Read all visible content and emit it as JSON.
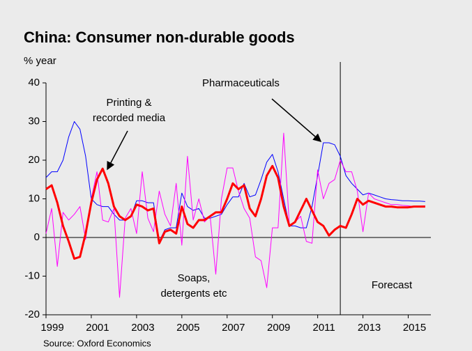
{
  "chart_data": {
    "type": "line",
    "title": "China: Consumer non-durable goods",
    "ylabel": "% year",
    "source": "Source: Oxford Economics",
    "annotations": [
      [
        "Pharmaceuticals"
      ],
      [
        "Printing &",
        "recorded media"
      ],
      [
        "Soaps,",
        "detergents etc"
      ],
      [
        "Forecast"
      ]
    ],
    "forecast_start": 2012,
    "x": [
      1999,
      1999.25,
      1999.5,
      1999.75,
      2000,
      2000.25,
      2000.5,
      2000.75,
      2001,
      2001.25,
      2001.5,
      2001.75,
      2002,
      2002.25,
      2002.5,
      2002.75,
      2003,
      2003.25,
      2003.5,
      2003.75,
      2004,
      2004.25,
      2004.5,
      2004.75,
      2005,
      2005.25,
      2005.5,
      2005.75,
      2006,
      2006.25,
      2006.5,
      2006.75,
      2007,
      2007.25,
      2007.5,
      2007.75,
      2008,
      2008.25,
      2008.5,
      2008.75,
      2009,
      2009.25,
      2009.5,
      2009.75,
      2010,
      2010.25,
      2010.5,
      2010.75,
      2011,
      2011.25,
      2011.5,
      2011.75,
      2012,
      2012.25,
      2012.5,
      2012.75,
      2013,
      2013.25,
      2013.5,
      2013.75,
      2014,
      2014.25,
      2014.5,
      2014.75,
      2015,
      2015.25,
      2015.5,
      2015.75
    ],
    "series": [
      {
        "color": "#0000ff",
        "width": 1,
        "values": [
          15.5,
          17,
          17,
          20,
          26,
          30,
          28,
          21,
          10,
          8.5,
          8,
          8,
          6,
          4.5,
          4.5,
          5.5,
          9.5,
          9.5,
          9,
          9,
          -1,
          2,
          2.5,
          2.5,
          11.5,
          8,
          7,
          7.5,
          5,
          5,
          5.5,
          6,
          8.5,
          10.5,
          10.5,
          14,
          10.5,
          11,
          15,
          19.5,
          21.5,
          17,
          10,
          3,
          3,
          2.5,
          2.5,
          8,
          16,
          24.5,
          24.5,
          24,
          21,
          16,
          14,
          12.5,
          11,
          11.5,
          11,
          10.5,
          10,
          9.8,
          9.7,
          9.5,
          9.5,
          9.4,
          9.4,
          9.3
        ]
      },
      {
        "color": "#ff00ff",
        "width": 1,
        "values": [
          1,
          7.5,
          -7.5,
          6.5,
          4.5,
          6,
          8,
          -0.5,
          10,
          17,
          4.5,
          4,
          7.5,
          -15.5,
          5,
          7.5,
          1,
          17,
          5,
          1.5,
          12,
          6,
          3,
          14,
          -2,
          21,
          4.5,
          10,
          4,
          5.5,
          -9.5,
          10,
          18,
          18,
          12,
          7.5,
          5,
          -5,
          -6,
          -13,
          2.5,
          2.5,
          27,
          3,
          4,
          5.5,
          -1,
          -1.5,
          17.5,
          10,
          14,
          15,
          20,
          17,
          17,
          12,
          1.5,
          11.5,
          10,
          9.5,
          9,
          8.5,
          8.5,
          8.3,
          8.2,
          8,
          8.1,
          8.2
        ]
      },
      {
        "color": "#ff0000",
        "width": 3,
        "values": [
          12.5,
          13.5,
          9,
          3,
          -1,
          -5.5,
          -5,
          1,
          9,
          15,
          17.8,
          14,
          8,
          5.5,
          4.5,
          5.5,
          8.5,
          8,
          7,
          7.5,
          -1.5,
          1.5,
          2,
          1,
          8,
          3.5,
          2.5,
          4.5,
          4.5,
          5.5,
          6.5,
          6.5,
          10,
          14,
          12.5,
          13.5,
          7.5,
          5.5,
          10,
          16,
          18.5,
          15.5,
          8,
          3,
          4,
          7,
          10,
          7,
          4,
          3,
          0.5,
          2,
          3,
          2.5,
          6,
          10,
          8.5,
          9.5,
          9,
          8.5,
          8,
          8,
          7.8,
          7.8,
          7.8,
          8,
          8,
          8
        ]
      }
    ],
    "xlim": [
      1999,
      2016
    ],
    "xticks": [
      1999,
      2001,
      2003,
      2005,
      2007,
      2009,
      2011,
      2013,
      2015
    ],
    "ylim": [
      -20,
      40
    ],
    "yticks": [
      -20,
      -10,
      0,
      10,
      20,
      30,
      40
    ]
  }
}
